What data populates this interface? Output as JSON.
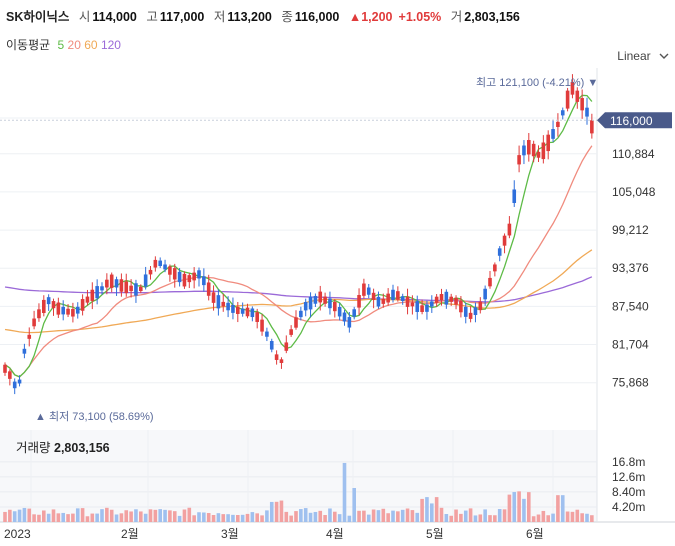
{
  "header": {
    "name": "SK하이닉스",
    "open_label": "시",
    "open": "114,000",
    "high_label": "고",
    "high": "117,000",
    "low_label": "저",
    "low": "113,200",
    "close_label": "종",
    "close": "116,000",
    "change": "▲1,200",
    "change_pct": "+1.05%",
    "volume_label": "거",
    "volume": "2,803,156"
  },
  "moving_avg": {
    "label": "이동평균",
    "periods": [
      {
        "label": "5",
        "color": "#5dbb46"
      },
      {
        "label": "20",
        "color": "#f08b7e"
      },
      {
        "label": "60",
        "color": "#f0a956"
      },
      {
        "label": "120",
        "color": "#9b6ad8"
      }
    ]
  },
  "scale_selector": "Linear",
  "volume_panel": {
    "label": "거래량",
    "value": "2,803,156"
  },
  "colors": {
    "up": "#e03b3b",
    "down": "#2f6fdb",
    "vol_up": "#f2a1a1",
    "vol_down": "#9fc0ef",
    "badge": "#4a5a8a"
  },
  "chart_data": {
    "type": "candlestick",
    "x_ticks": [
      "2023",
      "2월",
      "3월",
      "4월",
      "5월",
      "6월"
    ],
    "y_ticks": [
      75868,
      81704,
      87540,
      93376,
      99212,
      105048,
      110884
    ],
    "y_tick_labels": [
      "75,868",
      "81,704",
      "87,540",
      "93,376",
      "99,212",
      "105,048",
      "110,884"
    ],
    "ylim": [
      72000,
      124000
    ],
    "current_price": 116000,
    "current_price_label": "116,000",
    "max_annotation": "최고 121,100 (-4.21%) ▼",
    "min_annotation": "▲ 최저 73,100 (58.69%)",
    "volume_ticks": [
      "16.8m",
      "12.6m",
      "8.40m",
      "4.20m"
    ],
    "volume_tick_values": [
      16800000,
      12600000,
      8400000,
      4200000
    ],
    "volume_ylim": [
      0,
      19000000
    ]
  }
}
